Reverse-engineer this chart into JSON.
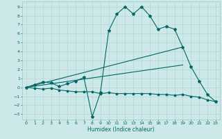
{
  "title": "",
  "xlabel": "Humidex (Indice chaleur)",
  "bg_color": "#cce8e8",
  "line_color": "#006666",
  "xlim": [
    -0.5,
    23.5
  ],
  "ylim": [
    -3.6,
    9.6
  ],
  "xticks": [
    0,
    1,
    2,
    3,
    4,
    5,
    6,
    7,
    8,
    9,
    10,
    11,
    12,
    13,
    14,
    15,
    16,
    17,
    18,
    19,
    20,
    21,
    22,
    23
  ],
  "yticks": [
    -3,
    -2,
    -1,
    0,
    1,
    2,
    3,
    4,
    5,
    6,
    7,
    8,
    9
  ],
  "series1_x": [
    0,
    1,
    2,
    3,
    4,
    5,
    6,
    7,
    8,
    9,
    10,
    11,
    12,
    13,
    14,
    15,
    16,
    17,
    18,
    19,
    20,
    21,
    22,
    23
  ],
  "series1_y": [
    0.0,
    0.3,
    0.6,
    0.5,
    0.1,
    0.4,
    0.7,
    1.1,
    -3.3,
    -0.6,
    6.3,
    8.2,
    9.0,
    8.2,
    9.0,
    8.0,
    6.5,
    6.8,
    6.5,
    4.5,
    2.3,
    0.7,
    -0.8,
    -1.6
  ],
  "series2_x": [
    0,
    19
  ],
  "series2_y": [
    0.0,
    4.5
  ],
  "series3_x": [
    0,
    19
  ],
  "series3_y": [
    0.0,
    2.5
  ],
  "series4_x": [
    0,
    1,
    2,
    3,
    4,
    5,
    6,
    7,
    8,
    9,
    10,
    11,
    12,
    13,
    14,
    15,
    16,
    17,
    18,
    19,
    20,
    21,
    22,
    23
  ],
  "series4_y": [
    0.0,
    -0.1,
    -0.2,
    -0.1,
    -0.3,
    -0.4,
    -0.5,
    -0.5,
    -0.5,
    -0.7,
    -0.6,
    -0.7,
    -0.7,
    -0.7,
    -0.7,
    -0.7,
    -0.8,
    -0.8,
    -0.9,
    -0.8,
    -1.0,
    -1.1,
    -1.4,
    -1.6
  ]
}
